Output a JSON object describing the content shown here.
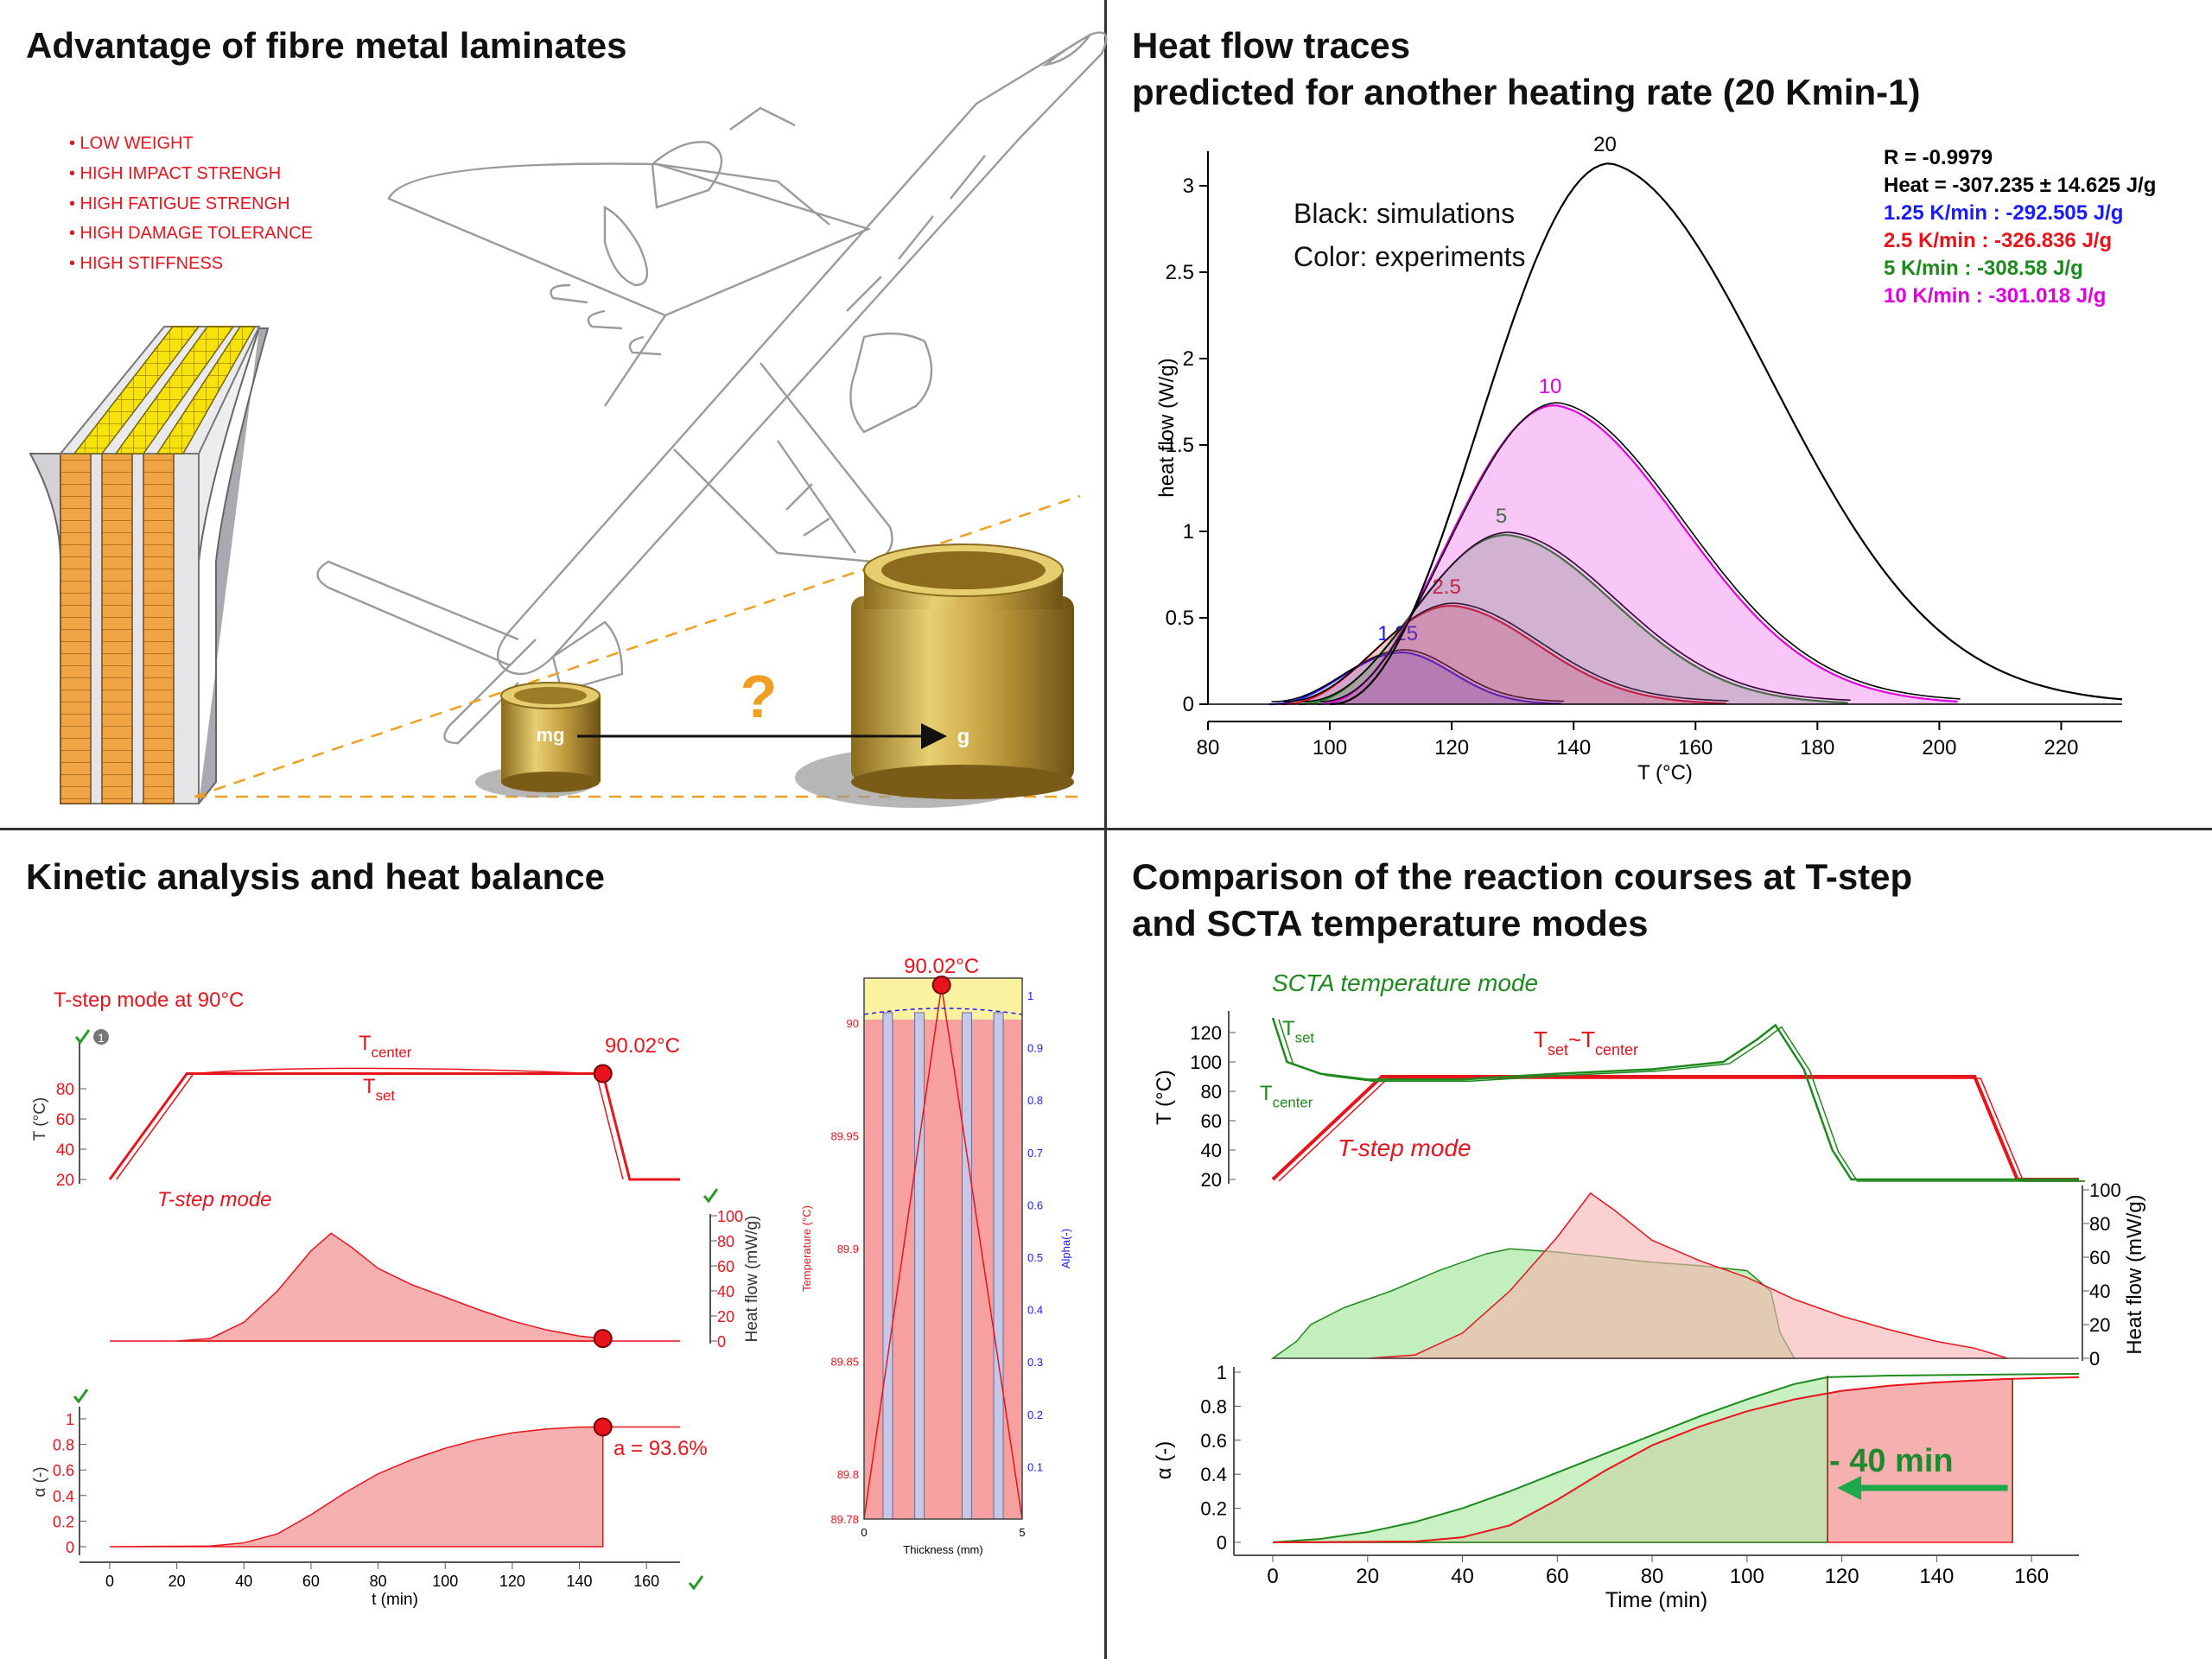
{
  "titles": {
    "q1": "Advantage of fibre metal laminates",
    "q2_line1": "Heat flow traces",
    "q2_line2": "predicted for another heating rate (20 Kmin-1)",
    "q3": "Kinetic analysis and heat balance",
    "q4_line1": "Comparison of the reaction courses at T-step",
    "q4_line2": "and SCTA temperature modes"
  },
  "advantages": [
    "• LOW WEIGHT",
    "• HIGH IMPACT STRENGH",
    "• HIGH FATIGUE STRENGH",
    "• HIGH DAMAGE TOLERANCE",
    "• HIGH STIFFNESS"
  ],
  "scale_labels": {
    "small": "mg",
    "large": "g",
    "question": "?"
  },
  "colors": {
    "red": "#e8141c",
    "green": "#1e8a1e",
    "blue": "#1a1aff",
    "magenta": "#e000e0",
    "fill_red": "#f7b0b0",
    "fill_green": "#b8ecb0",
    "fill_brown": "#c8a684",
    "accent_orange": "#f0a020"
  },
  "chart_data": [
    {
      "id": "heat-flow-traces",
      "type": "line",
      "xlabel": "T (°C)",
      "ylabel": "heat flow (W/g)",
      "xlim": [
        80,
        230
      ],
      "ylim": [
        0,
        3.2
      ],
      "x_ticks": [
        "80",
        "100",
        "120",
        "140",
        "160",
        "180",
        "200",
        "220"
      ],
      "y_ticks": [
        "0",
        "0.5",
        "1",
        "1.5",
        "2",
        "2.5",
        "3"
      ],
      "annotation_lines": [
        "Black: simulations",
        "Color: experiments"
      ],
      "stats": [
        {
          "text": "R = -0.9979",
          "color": "#000000"
        },
        {
          "text": "Heat = -307.235 ± 14.625 J/g",
          "color": "#000000"
        },
        {
          "text": "1.25 K/min : -292.505 J/g",
          "color": "#1a1aff"
        },
        {
          "text": "2.5 K/min : -326.836 J/g",
          "color": "#e8141c"
        },
        {
          "text": "5 K/min : -308.58 J/g",
          "color": "#1e8a1e"
        },
        {
          "text": "10 K/min : -301.018 J/g",
          "color": "#e000e0"
        }
      ],
      "series": [
        {
          "name": "1.25",
          "color": "#1a1aff",
          "peak_x": 112,
          "peak_y": 0.3,
          "start": 90,
          "end": 138
        },
        {
          "name": "2.5",
          "color": "#e8141c",
          "peak_x": 120,
          "peak_y": 0.57,
          "start": 92,
          "end": 165
        },
        {
          "name": "5",
          "color": "#1e8a1e",
          "peak_x": 129,
          "peak_y": 0.98,
          "start": 95,
          "end": 185
        },
        {
          "name": "10",
          "color": "#e000e0",
          "peak_x": 137,
          "peak_y": 1.73,
          "start": 98,
          "end": 203
        },
        {
          "name": "20",
          "color": "#000000",
          "peak_x": 146,
          "peak_y": 3.13,
          "start": 100,
          "end": 230
        }
      ]
    },
    {
      "id": "tstep-temperature",
      "type": "line",
      "ylabel": "T (°C)",
      "ylim": [
        20,
        100
      ],
      "y_ticks": [
        "20",
        "40",
        "60",
        "80"
      ],
      "labels": {
        "mode": "T-step mode at 90°C",
        "tcenter": "T",
        "tcenter_sub": "center",
        "tset": "T",
        "tset_sub": "set",
        "point": "90.02°C",
        "counter": "1"
      },
      "points": [
        [
          0,
          20
        ],
        [
          23,
          90
        ],
        [
          147,
          90
        ],
        [
          155,
          20
        ],
        [
          170,
          20
        ]
      ]
    },
    {
      "id": "tstep-heatflow",
      "type": "area",
      "ylabel": "Heat flow (mW/g)",
      "ylim": [
        0,
        100
      ],
      "y_ticks": [
        "0",
        "20",
        "40",
        "60",
        "80",
        "100"
      ],
      "labels": {
        "mode": "T-step mode"
      },
      "points": [
        [
          20,
          0
        ],
        [
          30,
          2
        ],
        [
          40,
          15
        ],
        [
          50,
          40
        ],
        [
          60,
          72
        ],
        [
          66,
          86
        ],
        [
          72,
          75
        ],
        [
          80,
          58
        ],
        [
          90,
          45
        ],
        [
          100,
          35
        ],
        [
          110,
          25
        ],
        [
          120,
          16
        ],
        [
          130,
          9
        ],
        [
          140,
          4
        ],
        [
          147,
          2
        ]
      ]
    },
    {
      "id": "tstep-conversion",
      "type": "area",
      "xlabel": "t (min)",
      "ylabel": "α (-)",
      "xlim": [
        0,
        170
      ],
      "ylim": [
        0,
        1
      ],
      "x_ticks": [
        "0",
        "20",
        "40",
        "60",
        "80",
        "100",
        "120",
        "140",
        "160"
      ],
      "y_ticks": [
        "0",
        "0.2",
        "0.4",
        "0.6",
        "0.8",
        "1"
      ],
      "labels": {
        "point": "a = 93.6%"
      },
      "points": [
        [
          0,
          0
        ],
        [
          30,
          0.005
        ],
        [
          40,
          0.03
        ],
        [
          50,
          0.1
        ],
        [
          60,
          0.25
        ],
        [
          70,
          0.42
        ],
        [
          80,
          0.57
        ],
        [
          90,
          0.68
        ],
        [
          100,
          0.77
        ],
        [
          110,
          0.84
        ],
        [
          120,
          0.89
        ],
        [
          130,
          0.92
        ],
        [
          140,
          0.935
        ],
        [
          147,
          0.936
        ]
      ]
    },
    {
      "id": "thickness-profile",
      "type": "line",
      "xlabel": "Thickness (mm)",
      "ylabel": "Temperature (°C)",
      "y2label": "Alpha(-)",
      "xlim": [
        0,
        5
      ],
      "ylim": [
        89.78,
        90.02
      ],
      "x_ticks": [
        "0",
        "5"
      ],
      "y_ticks": [
        "89.78",
        "89.8",
        "89.85",
        "89.9",
        "89.95",
        "90"
      ],
      "y2_ticks": [
        "0.1",
        "0.2",
        "0.3",
        "0.4",
        "0.5",
        "0.6",
        "0.7",
        "0.8",
        "0.9",
        "1"
      ],
      "labels": {
        "top": "90.02°C"
      }
    },
    {
      "id": "comparison-temperature",
      "type": "line",
      "ylabel": "T (°C)",
      "ylim": [
        20,
        130
      ],
      "y_ticks": [
        "20",
        "40",
        "60",
        "80",
        "100",
        "120"
      ],
      "labels": {
        "scta": "SCTA temperature mode",
        "tset": "T",
        "tset_sub": "set",
        "tcenter": "T",
        "tcenter_sub": "center",
        "tset_tc": "T",
        "tset_tc_sub1": "set",
        "tset_tc_mid": "~T",
        "tset_tc_sub2": "center",
        "tstep": "T-step mode"
      },
      "series": [
        {
          "name": "T-step",
          "color": "#e8141c",
          "points": [
            [
              0,
              20
            ],
            [
              23,
              90
            ],
            [
              148,
              90
            ],
            [
              157,
              20
            ],
            [
              170,
              20
            ]
          ]
        },
        {
          "name": "SCTA",
          "color": "#1e8a1e",
          "points": [
            [
              0,
              130
            ],
            [
              3,
              100
            ],
            [
              10,
              92
            ],
            [
              20,
              88
            ],
            [
              40,
              88
            ],
            [
              60,
              92
            ],
            [
              80,
              95
            ],
            [
              95,
              100
            ],
            [
              102,
              115
            ],
            [
              106,
              125
            ],
            [
              112,
              95
            ],
            [
              118,
              40
            ],
            [
              122,
              20
            ],
            [
              170,
              20
            ]
          ]
        }
      ]
    },
    {
      "id": "comparison-heatflow",
      "type": "area",
      "y2label": "Heat flow (mW/g)",
      "ylim": [
        0,
        100
      ],
      "y_ticks": [
        "0",
        "20",
        "40",
        "60",
        "80",
        "100"
      ],
      "series": [
        {
          "name": "SCTA",
          "color": "#1e8a1e",
          "points": [
            [
              0,
              0
            ],
            [
              5,
              10
            ],
            [
              8,
              20
            ],
            [
              15,
              30
            ],
            [
              25,
              40
            ],
            [
              35,
              52
            ],
            [
              45,
              62
            ],
            [
              50,
              65
            ],
            [
              60,
              63
            ],
            [
              70,
              60
            ],
            [
              80,
              57
            ],
            [
              90,
              55
            ],
            [
              100,
              52
            ],
            [
              105,
              40
            ],
            [
              107,
              15
            ],
            [
              110,
              0
            ]
          ]
        },
        {
          "name": "T-step",
          "color": "#e8141c",
          "points": [
            [
              20,
              0
            ],
            [
              30,
              2
            ],
            [
              40,
              15
            ],
            [
              50,
              40
            ],
            [
              60,
              72
            ],
            [
              67,
              98
            ],
            [
              72,
              88
            ],
            [
              80,
              70
            ],
            [
              90,
              58
            ],
            [
              100,
              48
            ],
            [
              110,
              35
            ],
            [
              120,
              25
            ],
            [
              130,
              17
            ],
            [
              140,
              10
            ],
            [
              148,
              6
            ],
            [
              155,
              0
            ]
          ]
        }
      ]
    },
    {
      "id": "comparison-conversion",
      "type": "area",
      "xlabel": "Time (min)",
      "ylabel": "α (-)",
      "xlim": [
        0,
        170
      ],
      "ylim": [
        0,
        1
      ],
      "x_ticks": [
        "0",
        "20",
        "40",
        "60",
        "80",
        "100",
        "120",
        "140",
        "160"
      ],
      "y_ticks": [
        "0",
        "0.2",
        "0.4",
        "0.6",
        "0.8",
        "1"
      ],
      "labels": {
        "gain": "- 40 min"
      },
      "series": [
        {
          "name": "SCTA",
          "color": "#1e8a1e",
          "points": [
            [
              0,
              0
            ],
            [
              10,
              0.02
            ],
            [
              20,
              0.06
            ],
            [
              30,
              0.12
            ],
            [
              40,
              0.2
            ],
            [
              50,
              0.3
            ],
            [
              60,
              0.41
            ],
            [
              70,
              0.52
            ],
            [
              80,
              0.63
            ],
            [
              90,
              0.74
            ],
            [
              100,
              0.84
            ],
            [
              110,
              0.93
            ],
            [
              117,
              0.97
            ],
            [
              130,
              0.98
            ],
            [
              170,
              0.99
            ]
          ]
        },
        {
          "name": "T-step",
          "color": "#e8141c",
          "points": [
            [
              0,
              0
            ],
            [
              30,
              0.005
            ],
            [
              40,
              0.03
            ],
            [
              50,
              0.1
            ],
            [
              60,
              0.25
            ],
            [
              70,
              0.42
            ],
            [
              80,
              0.57
            ],
            [
              90,
              0.68
            ],
            [
              100,
              0.77
            ],
            [
              110,
              0.84
            ],
            [
              120,
              0.89
            ],
            [
              130,
              0.92
            ],
            [
              140,
              0.94
            ],
            [
              155,
              0.96
            ],
            [
              170,
              0.97
            ]
          ]
        }
      ]
    }
  ]
}
